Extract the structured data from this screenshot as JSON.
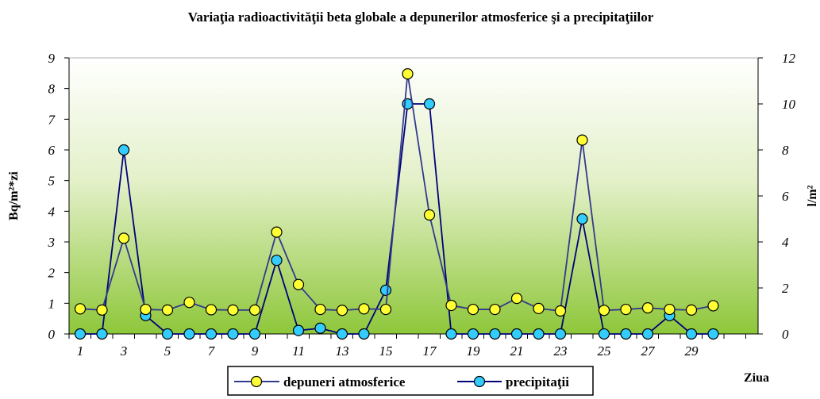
{
  "chart_data": {
    "type": "line",
    "title": "Variaţia radioactivităţii beta globale a depunerilor atmosferice şi a precipitaţiilor",
    "xlabel": "Ziua",
    "ylabel": "Bq/m²*zi",
    "y2label": "l/m²",
    "x": [
      1,
      2,
      3,
      4,
      5,
      6,
      7,
      8,
      9,
      10,
      11,
      12,
      13,
      14,
      15,
      16,
      17,
      18,
      19,
      20,
      21,
      22,
      23,
      24,
      25,
      26,
      27,
      28,
      29,
      30
    ],
    "x_tick_labels": [
      "1",
      "3",
      "5",
      "7",
      "9",
      "11",
      "13",
      "15",
      "17",
      "19",
      "21",
      "23",
      "25",
      "27",
      "29"
    ],
    "x_tick_values": [
      1,
      3,
      5,
      7,
      9,
      11,
      13,
      15,
      17,
      19,
      21,
      23,
      25,
      27,
      29
    ],
    "ylim": [
      0,
      9
    ],
    "y_ticks": [
      "0",
      "1",
      "2",
      "3",
      "4",
      "5",
      "6",
      "7",
      "8",
      "9"
    ],
    "y2lim": [
      0,
      12
    ],
    "y2_ticks": [
      "0",
      "2",
      "4",
      "6",
      "8",
      "10",
      "12"
    ],
    "series": [
      {
        "name": "depuneri atmosferice",
        "axis": "left",
        "color": "#343a8c",
        "marker_color": "#ffff33",
        "values": [
          0.82,
          0.78,
          3.12,
          0.8,
          0.78,
          1.03,
          0.79,
          0.78,
          0.78,
          3.32,
          1.61,
          0.8,
          0.77,
          0.82,
          0.8,
          8.48,
          3.88,
          0.93,
          0.8,
          0.8,
          1.16,
          0.83,
          0.75,
          6.32,
          0.77,
          0.8,
          0.85,
          0.8,
          0.78,
          0.92
        ]
      },
      {
        "name": "precipitaţii",
        "axis": "right",
        "color": "#00007a",
        "marker_color": "#33ccff",
        "values": [
          0,
          0,
          8.0,
          0.8,
          0,
          0,
          0,
          0,
          0,
          3.2,
          0.15,
          0.25,
          0,
          0,
          1.9,
          10.0,
          10.0,
          0,
          0,
          0,
          0,
          0,
          0,
          5.0,
          0,
          0,
          0,
          0.8,
          0,
          0
        ]
      }
    ],
    "grid": false,
    "legend_position": "bottom-center",
    "colors": {
      "bg_top": "#ffffff",
      "bg_bottom": "#8cc63f"
    }
  }
}
